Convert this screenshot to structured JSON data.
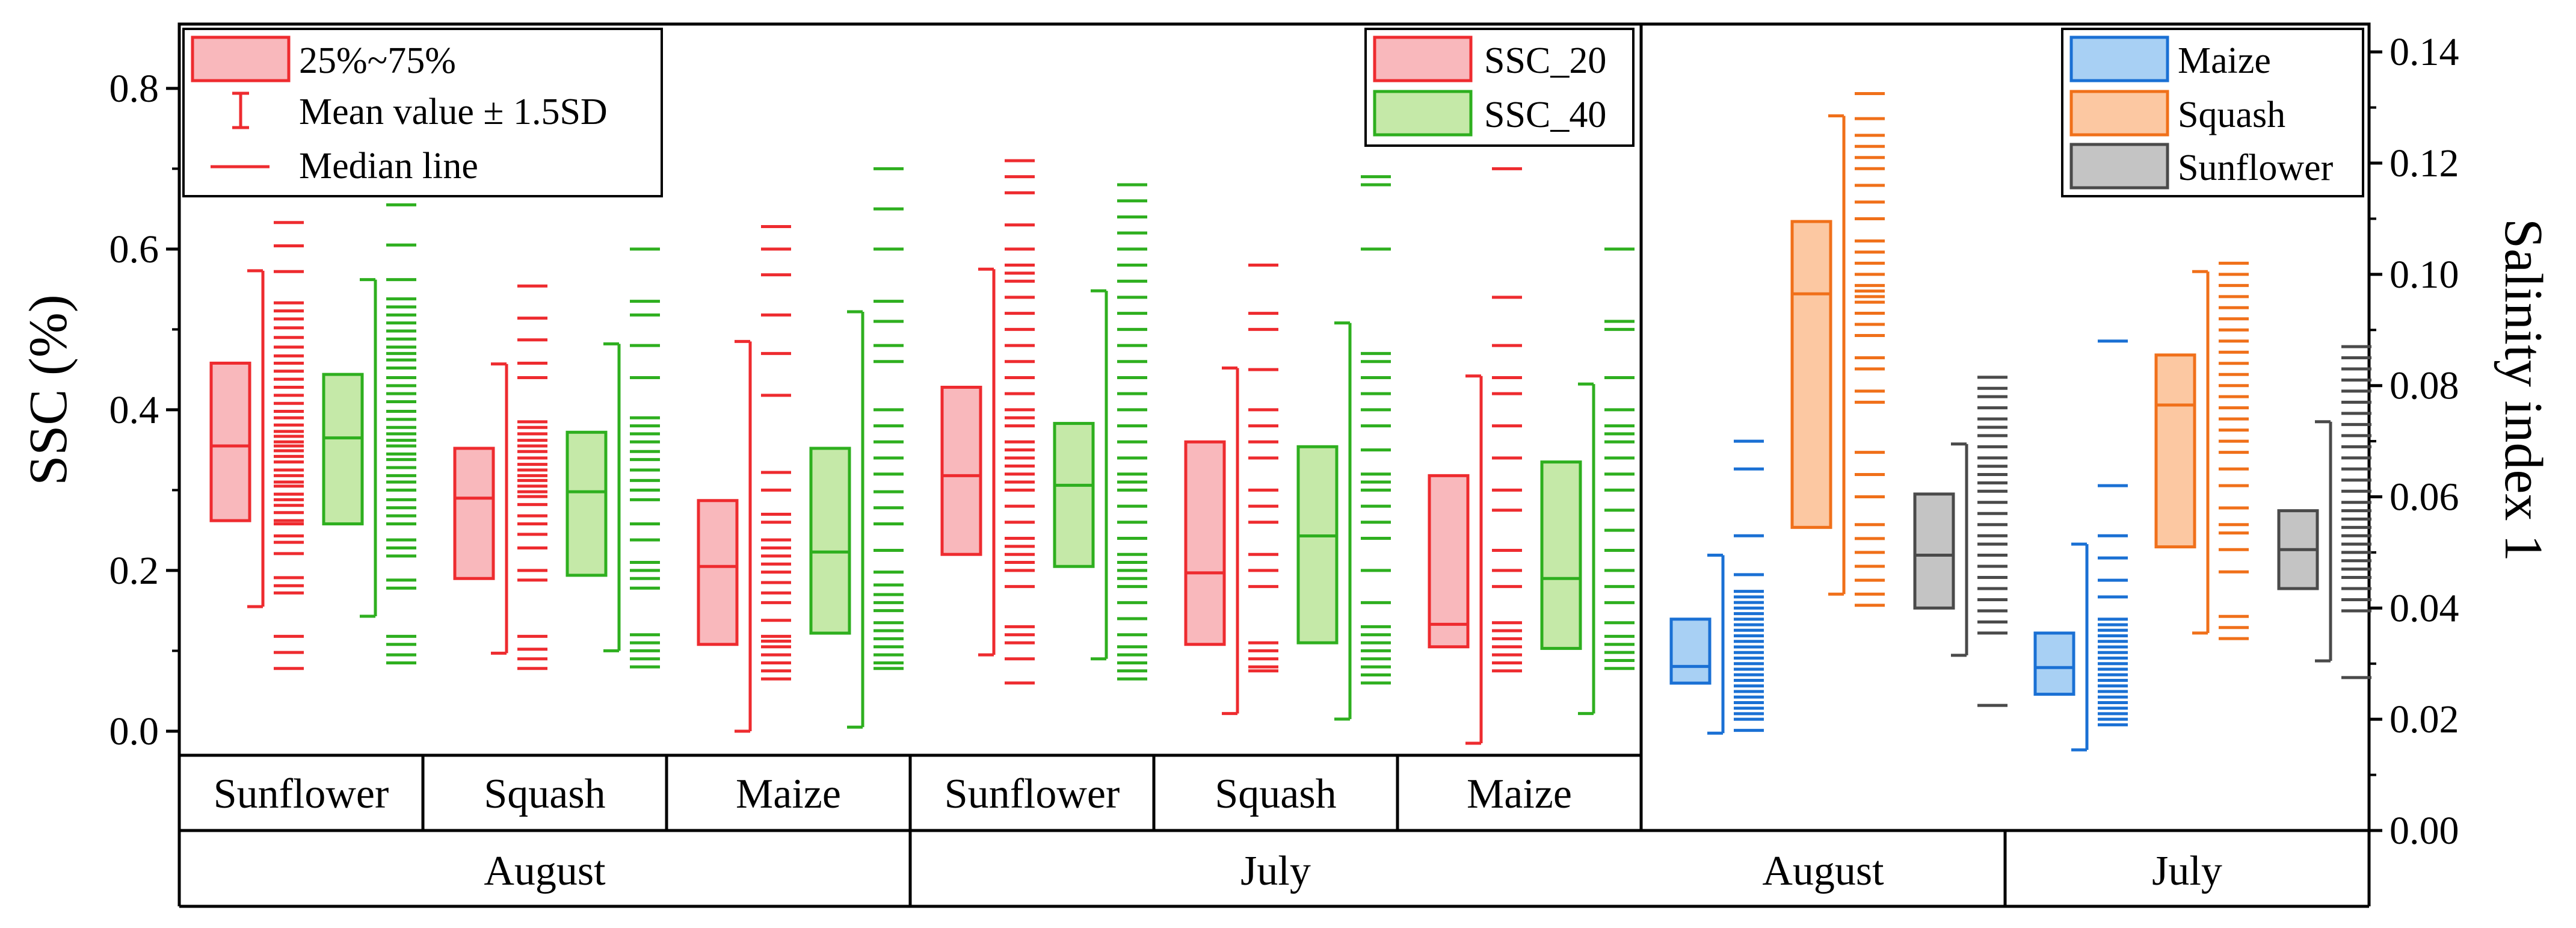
{
  "chart_data": {
    "type": "box",
    "left_panel": {
      "ylabel": "SSC (%)",
      "ylim": [
        -0.03,
        0.88
      ],
      "yticks": [
        0.0,
        0.2,
        0.4,
        0.6,
        0.8
      ],
      "ytick_labels": [
        "0.0",
        "0.2",
        "0.4",
        "0.6",
        "0.8"
      ],
      "months": [
        "August",
        "July"
      ],
      "crops": [
        "Sunflower",
        "Squash",
        "Maize",
        "Sunflower",
        "Squash",
        "Maize"
      ],
      "series": [
        {
          "name": "SSC_20",
          "color": "#ee2b2f",
          "fill": "#f9b8bc",
          "boxes": [
            {
              "q1": 0.262,
              "median": 0.355,
              "q3": 0.458,
              "whisker_low": 0.155,
              "whisker_high": 0.573,
              "points": [
                0.078,
                0.098,
                0.118,
                0.172,
                0.181,
                0.191,
                0.221,
                0.235,
                0.243,
                0.258,
                0.262,
                0.272,
                0.281,
                0.288,
                0.295,
                0.305,
                0.31,
                0.318,
                0.325,
                0.335,
                0.342,
                0.349,
                0.355,
                0.36,
                0.367,
                0.373,
                0.381,
                0.39,
                0.398,
                0.408,
                0.418,
                0.428,
                0.438,
                0.448,
                0.458,
                0.467,
                0.478,
                0.49,
                0.502,
                0.513,
                0.523,
                0.533,
                0.572,
                0.604,
                0.633
              ]
            },
            {
              "q1": 0.19,
              "median": 0.29,
              "q3": 0.352,
              "whisker_low": 0.097,
              "whisker_high": 0.457,
              "points": [
                0.078,
                0.09,
                0.102,
                0.118,
                0.188,
                0.2,
                0.228,
                0.245,
                0.258,
                0.268,
                0.282,
                0.292,
                0.298,
                0.305,
                0.312,
                0.318,
                0.325,
                0.332,
                0.34,
                0.348,
                0.355,
                0.362,
                0.37,
                0.378,
                0.385,
                0.44,
                0.458,
                0.487,
                0.514,
                0.554
              ]
            },
            {
              "q1": 0.108,
              "median": 0.205,
              "q3": 0.287,
              "whisker_low": 0.0,
              "whisker_high": 0.485,
              "points": [
                0.065,
                0.075,
                0.085,
                0.095,
                0.105,
                0.112,
                0.118,
                0.138,
                0.16,
                0.172,
                0.185,
                0.198,
                0.208,
                0.218,
                0.228,
                0.238,
                0.26,
                0.27,
                0.3,
                0.322,
                0.418,
                0.47,
                0.518,
                0.568,
                0.6,
                0.628
              ]
            },
            {
              "q1": 0.22,
              "median": 0.318,
              "q3": 0.428,
              "whisker_low": 0.095,
              "whisker_high": 0.575,
              "points": [
                0.06,
                0.09,
                0.11,
                0.12,
                0.13,
                0.18,
                0.2,
                0.21,
                0.22,
                0.23,
                0.24,
                0.26,
                0.28,
                0.3,
                0.31,
                0.32,
                0.33,
                0.34,
                0.35,
                0.36,
                0.38,
                0.39,
                0.4,
                0.42,
                0.44,
                0.46,
                0.48,
                0.5,
                0.52,
                0.54,
                0.56,
                0.57,
                0.58,
                0.6,
                0.63,
                0.67,
                0.69,
                0.71
              ]
            },
            {
              "q1": 0.108,
              "median": 0.197,
              "q3": 0.36,
              "whisker_low": 0.022,
              "whisker_high": 0.452,
              "points": [
                0.075,
                0.08,
                0.09,
                0.1,
                0.11,
                0.18,
                0.2,
                0.22,
                0.26,
                0.28,
                0.3,
                0.34,
                0.36,
                0.38,
                0.4,
                0.45,
                0.5,
                0.52,
                0.58
              ]
            },
            {
              "q1": 0.105,
              "median": 0.133,
              "q3": 0.318,
              "whisker_low": -0.015,
              "whisker_high": 0.442,
              "points": [
                0.075,
                0.085,
                0.095,
                0.105,
                0.115,
                0.125,
                0.135,
                0.18,
                0.2,
                0.225,
                0.275,
                0.3,
                0.34,
                0.38,
                0.42,
                0.44,
                0.48,
                0.54,
                0.7
              ]
            }
          ]
        },
        {
          "name": "SSC_40",
          "color": "#2eaf1f",
          "fill": "#c5e9a8",
          "boxes": [
            {
              "q1": 0.258,
              "median": 0.365,
              "q3": 0.444,
              "whisker_low": 0.143,
              "whisker_high": 0.562,
              "points": [
                0.085,
                0.095,
                0.108,
                0.118,
                0.178,
                0.188,
                0.218,
                0.228,
                0.238,
                0.258,
                0.268,
                0.278,
                0.288,
                0.3,
                0.31,
                0.318,
                0.328,
                0.338,
                0.345,
                0.355,
                0.362,
                0.37,
                0.378,
                0.388,
                0.398,
                0.41,
                0.42,
                0.43,
                0.44,
                0.452,
                0.462,
                0.47,
                0.478,
                0.488,
                0.498,
                0.508,
                0.518,
                0.528,
                0.538,
                0.562,
                0.605,
                0.655
              ]
            },
            {
              "q1": 0.194,
              "median": 0.298,
              "q3": 0.372,
              "whisker_low": 0.1,
              "whisker_high": 0.482,
              "points": [
                0.08,
                0.09,
                0.1,
                0.11,
                0.12,
                0.178,
                0.19,
                0.2,
                0.21,
                0.238,
                0.258,
                0.288,
                0.3,
                0.312,
                0.325,
                0.338,
                0.348,
                0.36,
                0.37,
                0.38,
                0.39,
                0.44,
                0.48,
                0.518,
                0.535,
                0.6
              ]
            },
            {
              "q1": 0.122,
              "median": 0.223,
              "q3": 0.352,
              "whisker_low": 0.005,
              "whisker_high": 0.522,
              "points": [
                0.078,
                0.085,
                0.095,
                0.105,
                0.115,
                0.125,
                0.135,
                0.15,
                0.16,
                0.17,
                0.182,
                0.198,
                0.225,
                0.258,
                0.278,
                0.298,
                0.32,
                0.34,
                0.36,
                0.38,
                0.4,
                0.46,
                0.48,
                0.51,
                0.535,
                0.6,
                0.65,
                0.7
              ]
            },
            {
              "q1": 0.205,
              "median": 0.306,
              "q3": 0.383,
              "whisker_low": 0.09,
              "whisker_high": 0.548,
              "points": [
                0.065,
                0.075,
                0.085,
                0.095,
                0.105,
                0.12,
                0.14,
                0.16,
                0.18,
                0.19,
                0.2,
                0.21,
                0.22,
                0.24,
                0.26,
                0.28,
                0.3,
                0.31,
                0.32,
                0.34,
                0.36,
                0.38,
                0.4,
                0.42,
                0.44,
                0.46,
                0.48,
                0.5,
                0.52,
                0.54,
                0.56,
                0.58,
                0.6,
                0.62,
                0.64,
                0.66,
                0.68
              ]
            },
            {
              "q1": 0.11,
              "median": 0.243,
              "q3": 0.354,
              "whisker_low": 0.015,
              "whisker_high": 0.508,
              "points": [
                0.06,
                0.07,
                0.08,
                0.09,
                0.1,
                0.11,
                0.12,
                0.13,
                0.16,
                0.2,
                0.24,
                0.26,
                0.28,
                0.3,
                0.31,
                0.32,
                0.35,
                0.38,
                0.4,
                0.42,
                0.44,
                0.46,
                0.47,
                0.6,
                0.68,
                0.69
              ]
            },
            {
              "q1": 0.103,
              "median": 0.19,
              "q3": 0.335,
              "whisker_low": 0.022,
              "whisker_high": 0.432,
              "points": [
                0.078,
                0.088,
                0.098,
                0.108,
                0.118,
                0.135,
                0.16,
                0.18,
                0.2,
                0.225,
                0.25,
                0.275,
                0.3,
                0.32,
                0.34,
                0.36,
                0.37,
                0.38,
                0.4,
                0.44,
                0.5,
                0.51,
                0.6
              ]
            }
          ]
        }
      ],
      "legend_stats": {
        "box": "25%~75%",
        "whisker": "Mean value ± 1.5SD",
        "median": "Median line"
      }
    },
    "right_panel": {
      "ylabel": "Salinity index 1",
      "ylim": [
        0.0,
        0.145
      ],
      "yticks": [
        0.0,
        0.02,
        0.04,
        0.06,
        0.08,
        0.1,
        0.12,
        0.14
      ],
      "ytick_labels": [
        "0.00",
        "0.02",
        "0.04",
        "0.06",
        "0.08",
        "0.10",
        "0.12",
        "0.14"
      ],
      "months": [
        "August",
        "July"
      ],
      "series": [
        {
          "name": "Maize",
          "color": "#1a70d4",
          "fill": "#a8d0f4",
          "boxes": [
            {
              "q1": 0.0265,
              "median": 0.0295,
              "q3": 0.038,
              "whisker_low": 0.0175,
              "whisker_high": 0.0495,
              "points": [
                0.018,
                0.02,
                0.021,
                0.022,
                0.023,
                0.024,
                0.025,
                0.026,
                0.027,
                0.028,
                0.029,
                0.03,
                0.031,
                0.032,
                0.033,
                0.034,
                0.035,
                0.036,
                0.037,
                0.038,
                0.039,
                0.04,
                0.041,
                0.042,
                0.043,
                0.046,
                0.053,
                0.065,
                0.07
              ]
            },
            {
              "q1": 0.0245,
              "median": 0.0293,
              "q3": 0.0355,
              "whisker_low": 0.0145,
              "whisker_high": 0.0515,
              "points": [
                0.019,
                0.02,
                0.021,
                0.022,
                0.023,
                0.024,
                0.025,
                0.026,
                0.027,
                0.028,
                0.029,
                0.03,
                0.031,
                0.032,
                0.033,
                0.034,
                0.035,
                0.036,
                0.037,
                0.038,
                0.042,
                0.045,
                0.049,
                0.053,
                0.062,
                0.088
              ]
            }
          ]
        },
        {
          "name": "Squash",
          "color": "#f0701a",
          "fill": "#fcc8a2",
          "boxes": [
            {
              "q1": 0.0545,
              "median": 0.0965,
              "q3": 0.1095,
              "whisker_low": 0.0425,
              "whisker_high": 0.1285,
              "points": [
                0.0405,
                0.0425,
                0.045,
                0.0475,
                0.05,
                0.0525,
                0.055,
                0.06,
                0.064,
                0.068,
                0.077,
                0.079,
                0.083,
                0.085,
                0.089,
                0.091,
                0.093,
                0.095,
                0.096,
                0.097,
                0.098,
                0.1,
                0.102,
                0.104,
                0.106,
                0.11,
                0.113,
                0.116,
                0.119,
                0.121,
                0.123,
                0.125,
                0.128,
                0.1325
              ]
            },
            {
              "q1": 0.051,
              "median": 0.0765,
              "q3": 0.0855,
              "whisker_low": 0.0355,
              "whisker_high": 0.1005,
              "points": [
                0.0345,
                0.0365,
                0.0385,
                0.0465,
                0.0505,
                0.0535,
                0.055,
                0.058,
                0.062,
                0.065,
                0.068,
                0.07,
                0.072,
                0.074,
                0.076,
                0.078,
                0.08,
                0.082,
                0.084,
                0.086,
                0.088,
                0.09,
                0.092,
                0.094,
                0.096,
                0.098,
                0.1,
                0.102
              ]
            }
          ]
        },
        {
          "name": "Sunflower",
          "color": "#4a4a4a",
          "fill": "#c4c4c4",
          "boxes": [
            {
              "q1": 0.04,
              "median": 0.0495,
              "q3": 0.0605,
              "whisker_low": 0.0315,
              "whisker_high": 0.0695,
              "points": [
                0.0225,
                0.0355,
                0.0375,
                0.0395,
                0.0415,
                0.0435,
                0.0455,
                0.0475,
                0.0495,
                0.0515,
                0.053,
                0.055,
                0.057,
                0.059,
                0.061,
                0.0625,
                0.064,
                0.0655,
                0.067,
                0.069,
                0.071,
                0.0725,
                0.074,
                0.076,
                0.078,
                0.0795,
                0.0815
              ]
            },
            {
              "q1": 0.0435,
              "median": 0.0505,
              "q3": 0.0575,
              "whisker_low": 0.0305,
              "whisker_high": 0.0735,
              "points": [
                0.0275,
                0.0395,
                0.0415,
                0.0435,
                0.0455,
                0.047,
                0.0485,
                0.05,
                0.0515,
                0.053,
                0.0545,
                0.056,
                0.0575,
                0.059,
                0.061,
                0.063,
                0.065,
                0.067,
                0.069,
                0.071,
                0.073,
                0.075,
                0.077,
                0.079,
                0.081,
                0.083,
                0.085,
                0.087
              ]
            }
          ]
        }
      ]
    }
  }
}
